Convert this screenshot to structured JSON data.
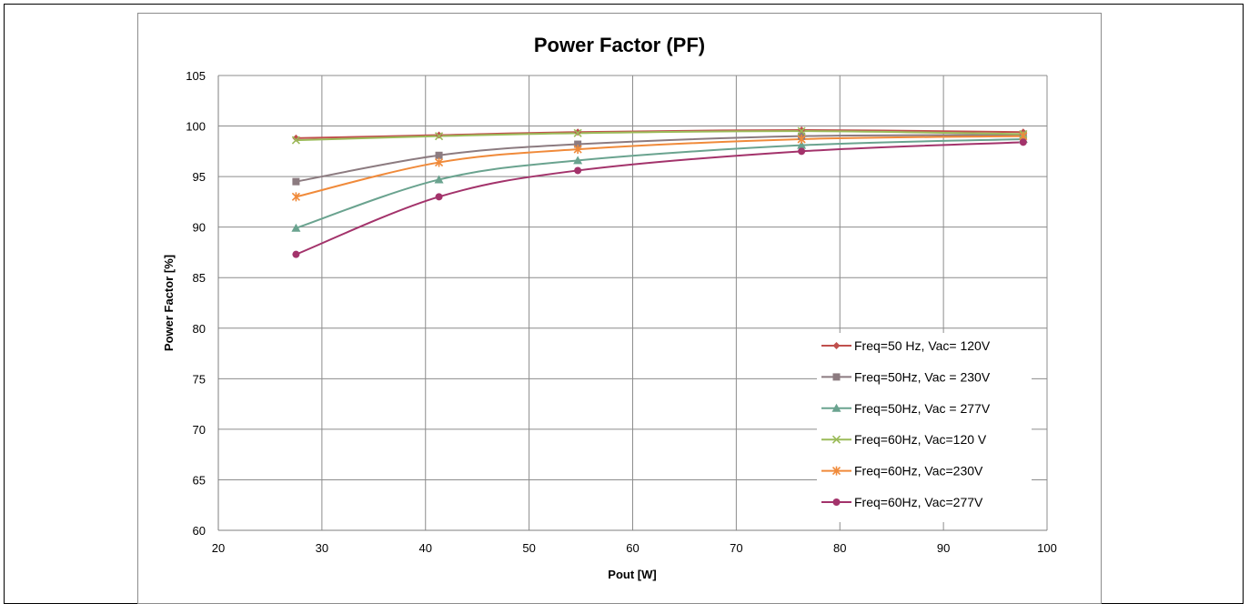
{
  "chart_data": {
    "type": "line",
    "title": "Power Factor (PF)",
    "xlabel": "Pout [W]",
    "ylabel": "Power Factor [%]",
    "xlim": [
      20,
      100
    ],
    "ylim": [
      60,
      105
    ],
    "x_ticks": [
      20,
      30,
      40,
      50,
      60,
      70,
      80,
      90,
      100
    ],
    "y_ticks": [
      60,
      65,
      70,
      75,
      80,
      85,
      90,
      95,
      100,
      105
    ],
    "grid": true,
    "legend_position": "bottom-right",
    "series": [
      {
        "name": "Freq=50 Hz, Vac= 120V",
        "marker": "diamond",
        "color": "#c0504d",
        "x": [
          27.5,
          41.3,
          54.7,
          76.3,
          97.7
        ],
        "y": [
          98.8,
          99.1,
          99.4,
          99.6,
          99.4
        ]
      },
      {
        "name": "Freq=50Hz, Vac = 230V",
        "marker": "square",
        "color": "#8c7b80",
        "x": [
          27.5,
          41.3,
          54.7,
          76.3,
          97.7
        ],
        "y": [
          94.5,
          97.1,
          98.2,
          99.0,
          99.1
        ]
      },
      {
        "name": "Freq=50Hz, Vac = 277V",
        "marker": "triangle",
        "color": "#6aa38f",
        "x": [
          27.5,
          41.3,
          54.7,
          76.3,
          97.7
        ],
        "y": [
          89.9,
          94.7,
          96.6,
          98.1,
          98.7
        ]
      },
      {
        "name": "Freq=60Hz, Vac=120 V",
        "marker": "x",
        "color": "#9bbb59",
        "x": [
          27.5,
          41.3,
          54.7,
          76.3,
          97.7
        ],
        "y": [
          98.6,
          99.0,
          99.3,
          99.5,
          99.2
        ]
      },
      {
        "name": "Freq=60Hz, Vac=230V",
        "marker": "star",
        "color": "#f08a3a",
        "x": [
          27.5,
          41.3,
          54.7,
          76.3,
          97.7
        ],
        "y": [
          93.0,
          96.4,
          97.7,
          98.7,
          99.0
        ]
      },
      {
        "name": "Freq=60Hz, Vac=277V",
        "marker": "circle",
        "color": "#a3336b",
        "x": [
          27.5,
          41.3,
          54.7,
          76.3,
          97.7
        ],
        "y": [
          87.3,
          93.0,
          95.6,
          97.5,
          98.4
        ]
      }
    ]
  }
}
